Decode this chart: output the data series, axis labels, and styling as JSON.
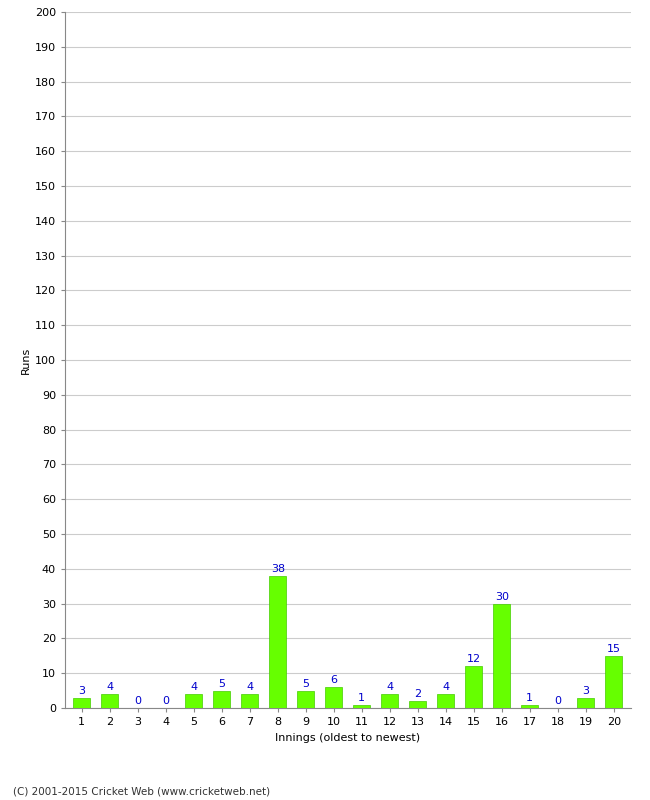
{
  "innings": [
    1,
    2,
    3,
    4,
    5,
    6,
    7,
    8,
    9,
    10,
    11,
    12,
    13,
    14,
    15,
    16,
    17,
    18,
    19,
    20
  ],
  "runs": [
    3,
    4,
    0,
    0,
    4,
    5,
    4,
    38,
    5,
    6,
    1,
    4,
    2,
    4,
    12,
    30,
    1,
    0,
    3,
    15
  ],
  "bar_color": "#66ff00",
  "bar_edge_color": "#44cc00",
  "title": "",
  "ylabel": "Runs",
  "xlabel": "Innings (oldest to newest)",
  "ylim": [
    0,
    200
  ],
  "yticks": [
    0,
    10,
    20,
    30,
    40,
    50,
    60,
    70,
    80,
    90,
    100,
    110,
    120,
    130,
    140,
    150,
    160,
    170,
    180,
    190,
    200
  ],
  "label_color": "#0000cc",
  "footer": "(C) 2001-2015 Cricket Web (www.cricketweb.net)",
  "background_color": "#ffffff",
  "grid_color": "#cccccc"
}
